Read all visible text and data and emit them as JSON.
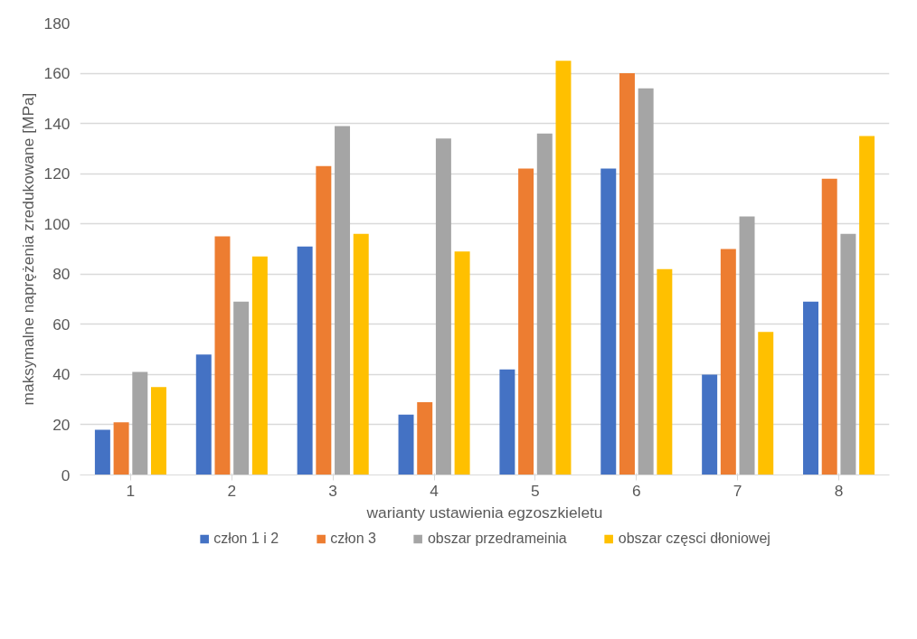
{
  "chart_data": {
    "type": "bar",
    "xlabel": "warianty ustawienia egzoszkieletu",
    "ylabel": "maksymalne naprężenia zredukowane [MPa]",
    "categories": [
      "1",
      "2",
      "3",
      "4",
      "5",
      "6",
      "7",
      "8"
    ],
    "series": [
      {
        "name": "człon 1 i 2",
        "color": "#4472c4",
        "values": [
          18,
          48,
          91,
          24,
          42,
          122,
          40,
          69
        ]
      },
      {
        "name": "człon 3",
        "color": "#ed7d31",
        "values": [
          21,
          95,
          123,
          29,
          122,
          160,
          90,
          118
        ]
      },
      {
        "name": "obszar przedrameinia",
        "color": "#a5a5a5",
        "values": [
          41,
          69,
          139,
          134,
          136,
          154,
          103,
          96
        ]
      },
      {
        "name": "obszar częsci dłoniowej",
        "color": "#ffc000",
        "values": [
          35,
          87,
          96,
          89,
          165,
          82,
          57,
          135
        ]
      }
    ],
    "ylim": [
      0,
      180
    ],
    "yticks": [
      0,
      20,
      40,
      60,
      80,
      100,
      120,
      140,
      160,
      180
    ],
    "grid": "y",
    "legend": "bottom"
  }
}
